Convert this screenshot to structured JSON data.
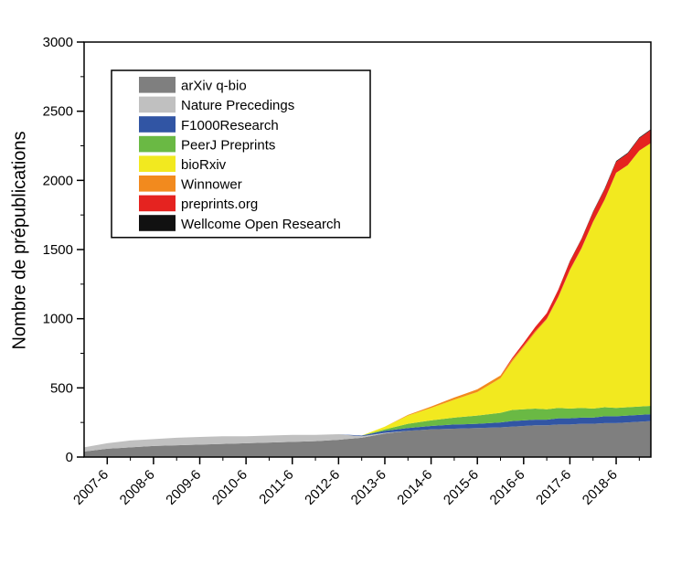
{
  "chart_data": {
    "type": "area",
    "stacked": true,
    "title": "",
    "xlabel": "",
    "ylabel": "Nombre de  prépublications",
    "ylim": [
      0,
      3000
    ],
    "yticks": [
      "0",
      "500",
      "1000",
      "1500",
      "2000",
      "2500",
      "3000"
    ],
    "xlim": [
      "2006-12",
      "2019-3"
    ],
    "xticks": [
      "2007-6",
      "2008-6",
      "2009-6",
      "2010-6",
      "2011-6",
      "2012-6",
      "2013-6",
      "2014-6",
      "2015-6",
      "2016-6",
      "2017-6",
      "2018-6"
    ],
    "legend_position": "top-left",
    "grid": false,
    "x": [
      "2006-12",
      "2007-6",
      "2007-12",
      "2008-6",
      "2008-12",
      "2009-6",
      "2009-12",
      "2010-6",
      "2010-12",
      "2011-6",
      "2011-12",
      "2012-6",
      "2012-12",
      "2013-6",
      "2013-12",
      "2014-6",
      "2014-12",
      "2015-6",
      "2015-12",
      "2016-3",
      "2016-6",
      "2016-9",
      "2016-12",
      "2017-3",
      "2017-6",
      "2017-9",
      "2017-12",
      "2018-3",
      "2018-6",
      "2018-9",
      "2018-12",
      "2019-3"
    ],
    "series": [
      {
        "name": "arXiv q-bio",
        "color": "#7f7f7f",
        "values": [
          40,
          60,
          70,
          80,
          85,
          90,
          95,
          100,
          105,
          110,
          115,
          125,
          140,
          170,
          190,
          200,
          205,
          210,
          215,
          220,
          225,
          230,
          230,
          235,
          235,
          240,
          240,
          245,
          245,
          250,
          255,
          260
        ]
      },
      {
        "name": "Nature Precedings",
        "color": "#c0c0c0",
        "values": [
          30,
          40,
          50,
          50,
          55,
          55,
          55,
          50,
          50,
          50,
          45,
          40,
          10,
          5,
          0,
          0,
          0,
          0,
          0,
          0,
          0,
          0,
          0,
          0,
          0,
          0,
          0,
          0,
          0,
          0,
          0,
          0
        ]
      },
      {
        "name": "F1000Research",
        "color": "#3155a4",
        "values": [
          0,
          0,
          0,
          0,
          0,
          0,
          0,
          0,
          0,
          0,
          0,
          0,
          5,
          15,
          20,
          25,
          30,
          30,
          35,
          40,
          40,
          40,
          40,
          45,
          45,
          45,
          45,
          50,
          50,
          50,
          50,
          50
        ]
      },
      {
        "name": "PeerJ Preprints",
        "color": "#6ab944",
        "values": [
          0,
          0,
          0,
          0,
          0,
          0,
          0,
          0,
          0,
          0,
          0,
          0,
          0,
          10,
          30,
          40,
          50,
          60,
          70,
          80,
          80,
          80,
          75,
          75,
          70,
          70,
          65,
          65,
          60,
          60,
          60,
          60
        ]
      },
      {
        "name": "bioRxiv",
        "color": "#f2e91f",
        "values": [
          0,
          0,
          0,
          0,
          0,
          0,
          0,
          0,
          0,
          0,
          0,
          0,
          0,
          20,
          60,
          90,
          130,
          170,
          250,
          350,
          450,
          550,
          650,
          800,
          1000,
          1150,
          1350,
          1500,
          1700,
          1750,
          1850,
          1900
        ]
      },
      {
        "name": "Winnower",
        "color": "#f28a1e",
        "values": [
          0,
          0,
          0,
          0,
          0,
          0,
          0,
          0,
          0,
          0,
          0,
          0,
          0,
          0,
          5,
          10,
          15,
          20,
          20,
          15,
          10,
          10,
          5,
          5,
          5,
          5,
          0,
          0,
          0,
          0,
          0,
          0
        ]
      },
      {
        "name": "preprints.org",
        "color": "#e52320",
        "values": [
          0,
          0,
          0,
          0,
          0,
          0,
          0,
          0,
          0,
          0,
          0,
          0,
          0,
          0,
          0,
          0,
          0,
          0,
          0,
          10,
          20,
          30,
          40,
          50,
          60,
          65,
          70,
          75,
          80,
          85,
          90,
          95
        ]
      },
      {
        "name": "Wellcome Open Research",
        "color": "#111111",
        "values": [
          0,
          0,
          0,
          0,
          0,
          0,
          0,
          0,
          0,
          0,
          0,
          0,
          0,
          0,
          0,
          0,
          0,
          0,
          0,
          0,
          0,
          0,
          0,
          1,
          2,
          3,
          4,
          5,
          5,
          5,
          5,
          5
        ]
      }
    ]
  }
}
